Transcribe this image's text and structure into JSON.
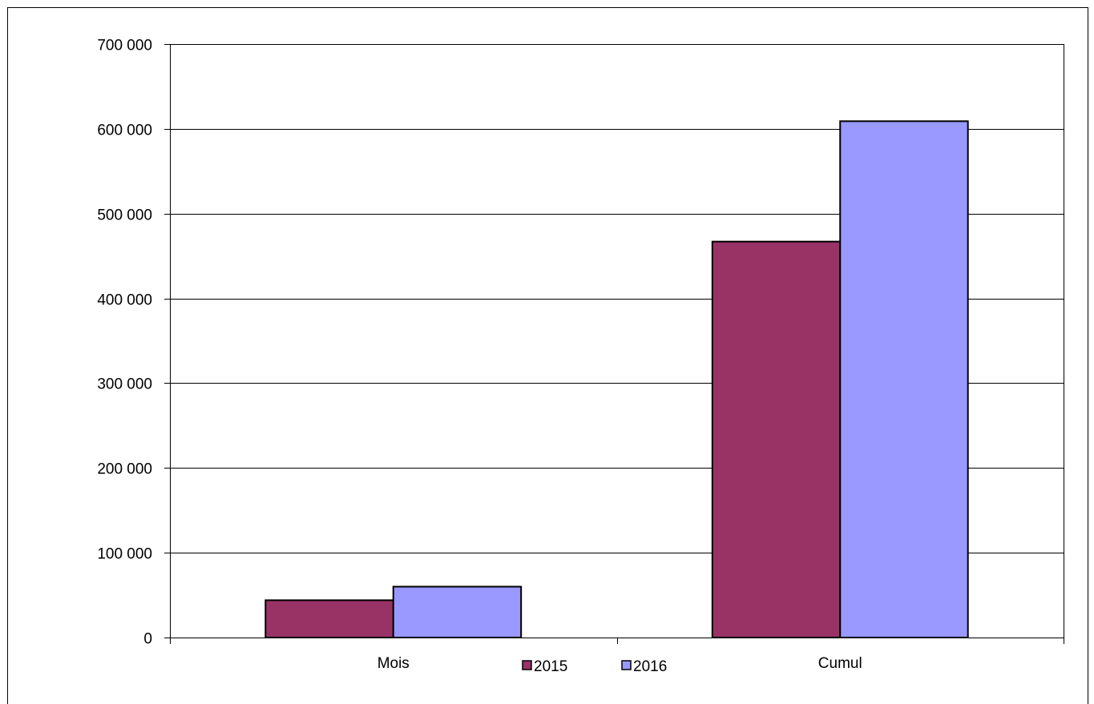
{
  "chart_data": {
    "type": "bar",
    "categories": [
      "Mois",
      "Cumul"
    ],
    "series": [
      {
        "name": "2015",
        "values": [
          44000,
          467000
        ],
        "color": "#993366"
      },
      {
        "name": "2016",
        "values": [
          60000,
          609000
        ],
        "color": "#9999ff"
      }
    ],
    "title": "",
    "xlabel": "",
    "ylabel": "",
    "ylim": [
      0,
      700000
    ],
    "yticks": [
      0,
      100000,
      200000,
      300000,
      400000,
      500000,
      600000,
      700000
    ],
    "ytick_labels": [
      "0",
      "100 000",
      "200 000",
      "300 000",
      "400 000",
      "500 000",
      "600 000",
      "700 000"
    ],
    "grid": true,
    "legend": {
      "position": "bottom",
      "entries": [
        "2015",
        "2016"
      ]
    }
  }
}
